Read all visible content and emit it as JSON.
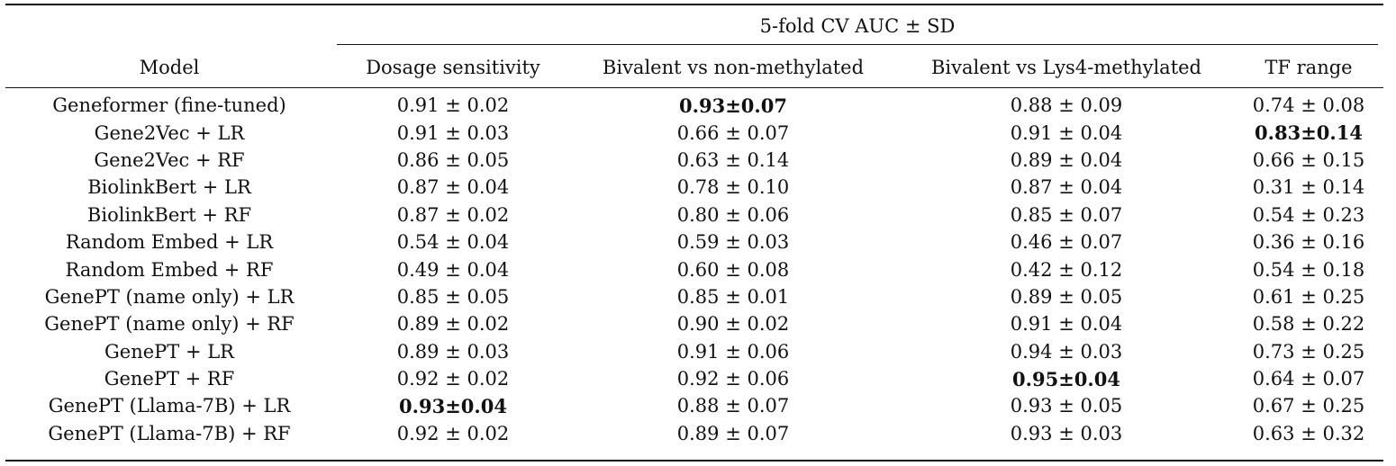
{
  "table": {
    "group_header": "5-fold CV AUC ± SD",
    "columns": [
      "Model",
      "Dosage sensitivity",
      "Bivalent vs non-methylated",
      "Bivalent vs Lys4-methylated",
      "TF range"
    ],
    "rows": [
      {
        "model": "Geneformer (fine-tuned)",
        "cells": [
          "0.91 ± 0.02",
          "0.93±0.07",
          "0.88 ± 0.09",
          "0.74 ± 0.08"
        ],
        "bold": [
          false,
          true,
          false,
          false
        ]
      },
      {
        "model": "Gene2Vec + LR",
        "cells": [
          "0.91 ± 0.03",
          "0.66 ± 0.07",
          "0.91 ± 0.04",
          "0.83±0.14"
        ],
        "bold": [
          false,
          false,
          false,
          true
        ]
      },
      {
        "model": "Gene2Vec + RF",
        "cells": [
          "0.86 ± 0.05",
          "0.63 ± 0.14",
          "0.89 ± 0.04",
          "0.66 ± 0.15"
        ],
        "bold": [
          false,
          false,
          false,
          false
        ]
      },
      {
        "model": "BiolinkBert + LR",
        "cells": [
          "0.87 ± 0.04",
          "0.78 ± 0.10",
          "0.87 ± 0.04",
          "0.31 ± 0.14"
        ],
        "bold": [
          false,
          false,
          false,
          false
        ]
      },
      {
        "model": "BiolinkBert + RF",
        "cells": [
          "0.87 ± 0.02",
          "0.80 ± 0.06",
          "0.85 ± 0.07",
          "0.54 ± 0.23"
        ],
        "bold": [
          false,
          false,
          false,
          false
        ]
      },
      {
        "model": "Random Embed + LR",
        "cells": [
          "0.54 ± 0.04",
          "0.59 ± 0.03",
          "0.46 ± 0.07",
          "0.36 ± 0.16"
        ],
        "bold": [
          false,
          false,
          false,
          false
        ]
      },
      {
        "model": "Random Embed + RF",
        "cells": [
          "0.49 ± 0.04",
          "0.60 ± 0.08",
          "0.42 ± 0.12",
          "0.54 ± 0.18"
        ],
        "bold": [
          false,
          false,
          false,
          false
        ]
      },
      {
        "model": "GenePT (name only) + LR",
        "cells": [
          "0.85 ± 0.05",
          "0.85 ± 0.01",
          "0.89 ± 0.05",
          "0.61 ± 0.25"
        ],
        "bold": [
          false,
          false,
          false,
          false
        ]
      },
      {
        "model": "GenePT (name only) + RF",
        "cells": [
          "0.89 ± 0.02",
          "0.90 ± 0.02",
          "0.91 ± 0.04",
          "0.58 ± 0.22"
        ],
        "bold": [
          false,
          false,
          false,
          false
        ]
      },
      {
        "model": "GenePT + LR",
        "cells": [
          "0.89 ± 0.03",
          "0.91 ± 0.06",
          "0.94 ± 0.03",
          "0.73 ± 0.25"
        ],
        "bold": [
          false,
          false,
          false,
          false
        ]
      },
      {
        "model": "GenePT + RF",
        "cells": [
          "0.92 ± 0.02",
          "0.92 ± 0.06",
          "0.95±0.04",
          "0.64 ± 0.07"
        ],
        "bold": [
          false,
          false,
          true,
          false
        ]
      },
      {
        "model": "GenePT (Llama-7B) + LR",
        "cells": [
          "0.93±0.04",
          "0.88 ± 0.07",
          "0.93 ± 0.05",
          "0.67 ± 0.25"
        ],
        "bold": [
          true,
          false,
          false,
          false
        ]
      },
      {
        "model": "GenePT (Llama-7B) + RF",
        "cells": [
          "0.92 ± 0.02",
          "0.89 ± 0.07",
          "0.93 ± 0.03",
          "0.63 ± 0.32"
        ],
        "bold": [
          false,
          false,
          false,
          false
        ]
      }
    ]
  }
}
